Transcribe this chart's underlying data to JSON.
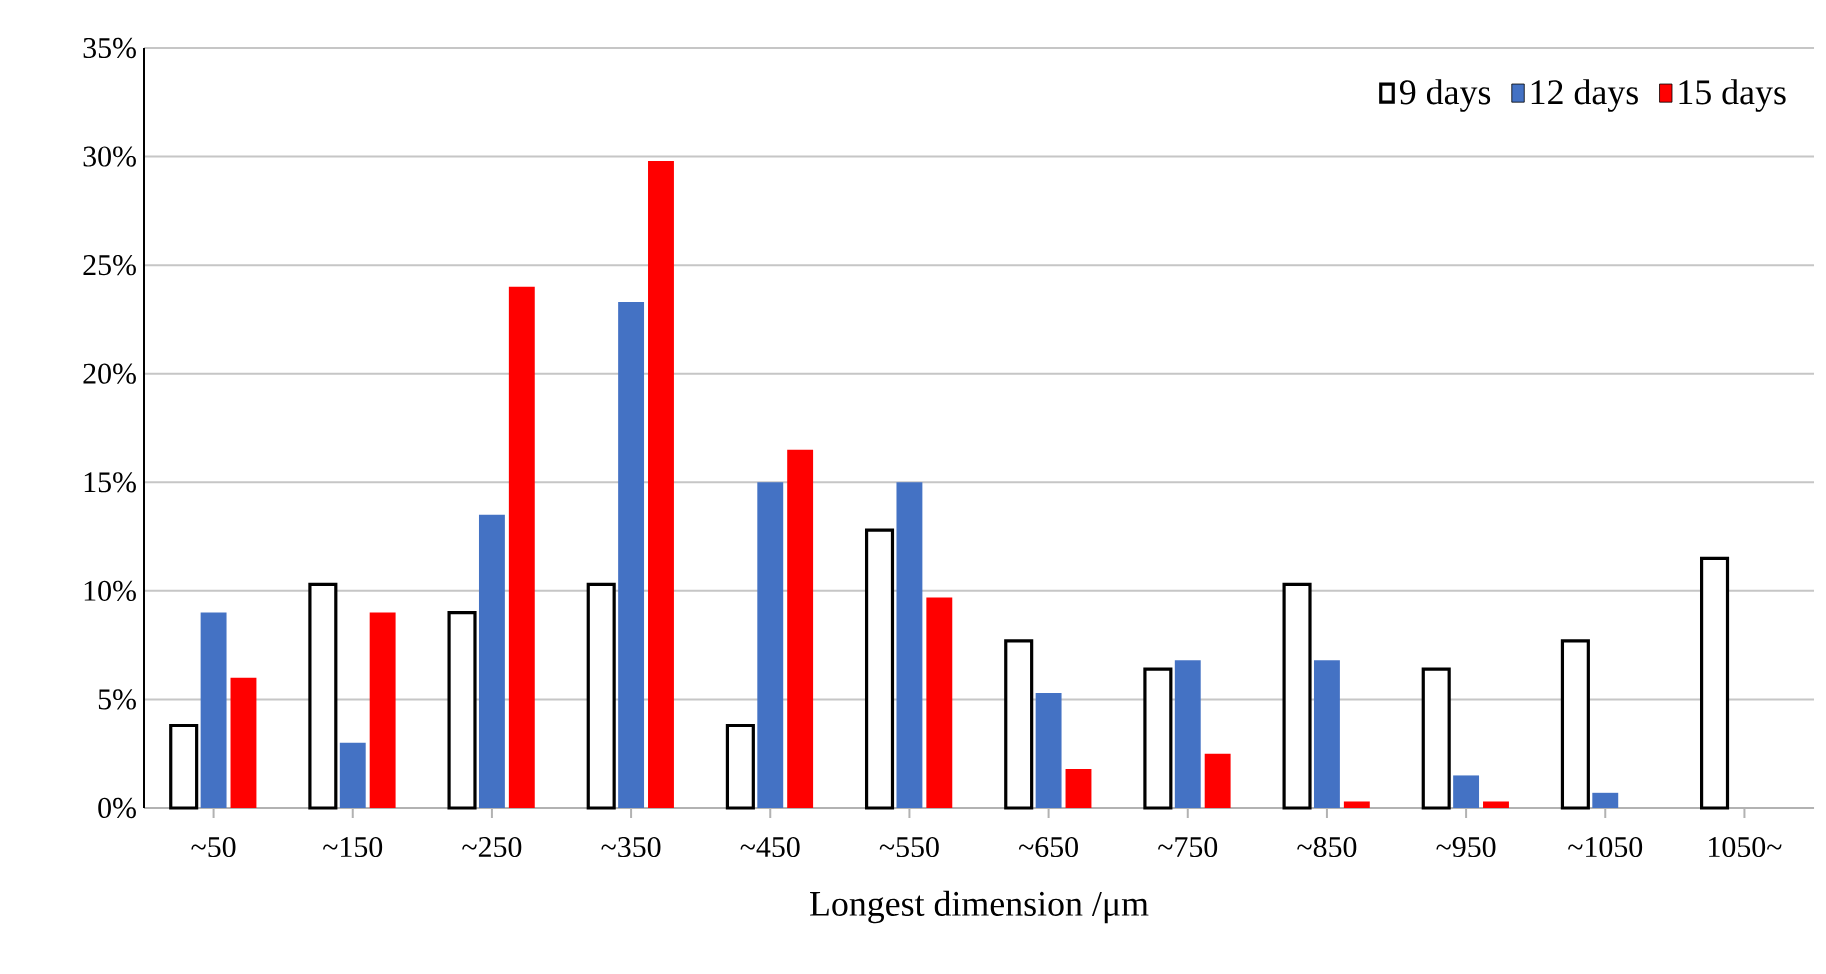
{
  "chart_data": {
    "type": "bar",
    "xlabel": "Longest dimension /μm",
    "categories": [
      "~50",
      "~150",
      "~250",
      "~350",
      "~450",
      "~550",
      "~650",
      "~750",
      "~850",
      "~950",
      "~1050",
      "1050~"
    ],
    "series": [
      {
        "name": "9 days",
        "color": "#ffffff",
        "values": [
          3.8,
          10.3,
          9.0,
          10.3,
          3.8,
          12.8,
          7.7,
          6.4,
          10.3,
          6.4,
          7.7,
          11.5
        ]
      },
      {
        "name": "12 days",
        "color": "#4472c4",
        "values": [
          9.0,
          3.0,
          13.5,
          23.3,
          15.0,
          15.0,
          5.3,
          6.8,
          6.8,
          1.5,
          0.7,
          0
        ]
      },
      {
        "name": "15 days",
        "color": "#ff0000",
        "values": [
          6.0,
          9.0,
          24.0,
          29.8,
          16.5,
          9.7,
          1.8,
          2.5,
          0.3,
          0.3,
          0,
          0
        ]
      }
    ],
    "ylim": [
      0,
      35
    ],
    "yticks": [
      {
        "value": 0,
        "label": "0%"
      },
      {
        "value": 5,
        "label": "5%"
      },
      {
        "value": 10,
        "label": "10%"
      },
      {
        "value": 15,
        "label": "15%"
      },
      {
        "value": 20,
        "label": "20%"
      },
      {
        "value": 25,
        "label": "25%"
      },
      {
        "value": 30,
        "label": "30%"
      },
      {
        "value": 35,
        "label": "35%"
      }
    ],
    "grid": "y",
    "legend": "top right"
  }
}
